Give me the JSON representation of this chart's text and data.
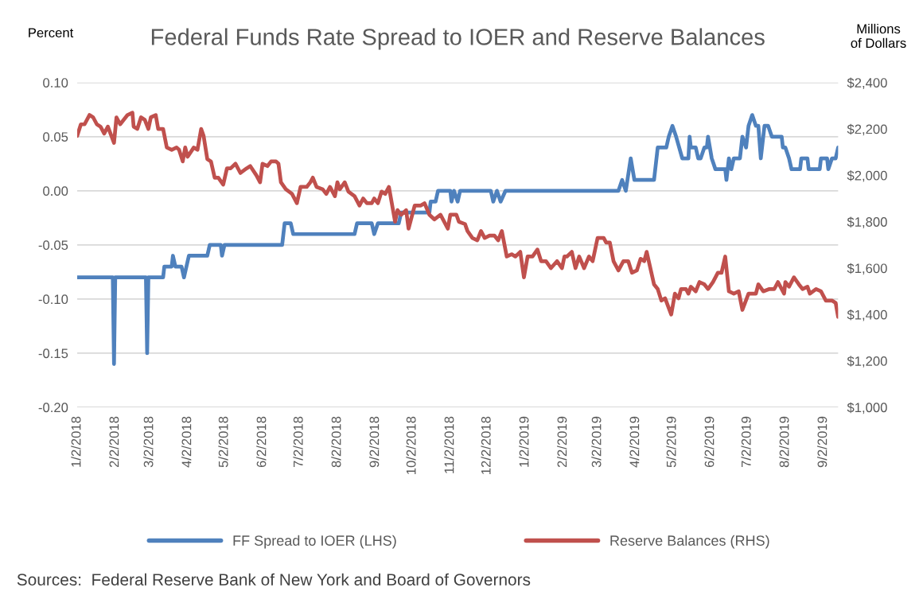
{
  "chart_data": {
    "type": "line",
    "title": "Federal Funds Rate Spread to IOER and Reserve Balances",
    "ylabel": "Percent",
    "y2label": "Millions\nof Dollars",
    "annotations": [
      "Sources:  Federal Reserve Bank of New York and Board of Governors"
    ],
    "xlim": [
      "2018-01-02",
      "2019-09-14"
    ],
    "xticks": [
      {
        "value": "2018-01-02",
        "label": "1/2/2018"
      },
      {
        "value": "2018-02-02",
        "label": "2/2/2018"
      },
      {
        "value": "2018-03-02",
        "label": "3/2/2018"
      },
      {
        "value": "2018-04-02",
        "label": "4/2/2018"
      },
      {
        "value": "2018-05-02",
        "label": "5/2/2018"
      },
      {
        "value": "2018-06-02",
        "label": "6/2/2018"
      },
      {
        "value": "2018-07-02",
        "label": "7/2/2018"
      },
      {
        "value": "2018-08-02",
        "label": "8/2/2018"
      },
      {
        "value": "2018-09-02",
        "label": "9/2/2018"
      },
      {
        "value": "2018-10-02",
        "label": "10/2/2018"
      },
      {
        "value": "2018-11-02",
        "label": "11/2/2018"
      },
      {
        "value": "2018-12-02",
        "label": "12/2/2018"
      },
      {
        "value": "2019-01-02",
        "label": "1/2/2019"
      },
      {
        "value": "2019-02-02",
        "label": "2/2/2019"
      },
      {
        "value": "2019-03-02",
        "label": "3/2/2019"
      },
      {
        "value": "2019-04-02",
        "label": "4/2/2019"
      },
      {
        "value": "2019-05-02",
        "label": "5/2/2019"
      },
      {
        "value": "2019-06-02",
        "label": "6/2/2019"
      },
      {
        "value": "2019-07-02",
        "label": "7/2/2019"
      },
      {
        "value": "2019-08-02",
        "label": "8/2/2019"
      },
      {
        "value": "2019-09-02",
        "label": "9/2/2019"
      }
    ],
    "ylim": [
      -0.2,
      0.1
    ],
    "yticks": [
      {
        "value": -0.2,
        "label": "-0.20"
      },
      {
        "value": -0.15,
        "label": "-0.15"
      },
      {
        "value": -0.1,
        "label": "-0.10"
      },
      {
        "value": -0.05,
        "label": "-0.05"
      },
      {
        "value": 0,
        "label": "0.00"
      },
      {
        "value": 0.05,
        "label": "0.05"
      },
      {
        "value": 0.1,
        "label": "0.10"
      }
    ],
    "y2lim": [
      1000,
      2400
    ],
    "y2ticks": [
      {
        "value": 1000,
        "label": "$1,000"
      },
      {
        "value": 1200,
        "label": "$1,200"
      },
      {
        "value": 1400,
        "label": "$1,400"
      },
      {
        "value": 1600,
        "label": "$1,600"
      },
      {
        "value": 1800,
        "label": "$1,800"
      },
      {
        "value": 2000,
        "label": "$2,000"
      },
      {
        "value": 2200,
        "label": "$2,200"
      },
      {
        "value": 2400,
        "label": "$2,400"
      }
    ],
    "grid": "y",
    "legend": "bottom",
    "series": [
      {
        "name": "FF Spread to IOER (LHS)",
        "color": "#4f81bd",
        "axis": "y",
        "x": [
          "2018-01-02",
          "2018-01-31",
          "2018-02-01",
          "2018-02-02",
          "2018-02-27",
          "2018-02-28",
          "2018-03-01",
          "2018-03-13",
          "2018-03-14",
          "2018-03-20",
          "2018-03-21",
          "2018-03-23",
          "2018-03-28",
          "2018-03-30",
          "2018-04-03",
          "2018-04-18",
          "2018-04-20",
          "2018-04-29",
          "2018-04-30",
          "2018-05-02",
          "2018-06-18",
          "2018-06-20",
          "2018-06-25",
          "2018-06-27",
          "2018-08-16",
          "2018-08-18",
          "2018-08-30",
          "2018-09-01",
          "2018-09-04",
          "2018-09-21",
          "2018-09-23",
          "2018-10-16",
          "2018-10-17",
          "2018-10-21",
          "2018-10-23",
          "2018-11-02",
          "2018-11-03",
          "2018-11-05",
          "2018-11-08",
          "2018-11-10",
          "2018-12-05",
          "2018-12-07",
          "2018-12-10",
          "2018-12-13",
          "2018-12-17",
          "2019-03-19",
          "2019-03-22",
          "2019-03-25",
          "2019-03-29",
          "2019-04-01",
          "2019-04-17",
          "2019-04-20",
          "2019-04-27",
          "2019-04-29",
          "2019-05-02",
          "2019-05-05",
          "2019-05-10",
          "2019-05-15",
          "2019-05-16",
          "2019-05-17",
          "2019-05-21",
          "2019-05-23",
          "2019-05-25",
          "2019-05-28",
          "2019-05-30",
          "2019-05-31",
          "2019-06-03",
          "2019-06-06",
          "2019-06-14",
          "2019-06-15",
          "2019-06-17",
          "2019-06-19",
          "2019-06-21",
          "2019-06-26",
          "2019-06-28",
          "2019-07-01",
          "2019-07-03",
          "2019-07-06",
          "2019-07-09",
          "2019-07-11",
          "2019-07-13",
          "2019-07-16",
          "2019-07-19",
          "2019-07-22",
          "2019-07-30",
          "2019-07-31",
          "2019-08-02",
          "2019-08-05",
          "2019-08-07",
          "2019-08-14",
          "2019-08-15",
          "2019-08-20",
          "2019-08-21",
          "2019-08-30",
          "2019-08-31",
          "2019-09-05",
          "2019-09-06",
          "2019-09-09",
          "2019-09-12",
          "2019-09-14"
        ],
        "values": [
          -0.08,
          -0.08,
          -0.16,
          -0.08,
          -0.08,
          -0.15,
          -0.08,
          -0.08,
          -0.07,
          -0.07,
          -0.06,
          -0.07,
          -0.07,
          -0.08,
          -0.06,
          -0.06,
          -0.05,
          -0.05,
          -0.06,
          -0.05,
          -0.05,
          -0.03,
          -0.03,
          -0.04,
          -0.04,
          -0.03,
          -0.03,
          -0.04,
          -0.03,
          -0.03,
          -0.02,
          -0.02,
          -0.01,
          -0.01,
          0,
          0,
          -0.01,
          0,
          -0.01,
          0,
          0,
          -0.01,
          0,
          -0.01,
          0,
          0,
          0.01,
          0,
          0.03,
          0.01,
          0.01,
          0.04,
          0.04,
          0.05,
          0.06,
          0.05,
          0.03,
          0.03,
          0.05,
          0.04,
          0.04,
          0.03,
          0.03,
          0.04,
          0.04,
          0.05,
          0.03,
          0.02,
          0.02,
          0.01,
          0.03,
          0.02,
          0.03,
          0.03,
          0.05,
          0.04,
          0.06,
          0.07,
          0.06,
          0.06,
          0.03,
          0.06,
          0.06,
          0.05,
          0.05,
          0.04,
          0.04,
          0.03,
          0.02,
          0.02,
          0.03,
          0.03,
          0.02,
          0.02,
          0.03,
          0.03,
          0.02,
          0.03,
          0.03,
          0.04
        ]
      },
      {
        "name": "Reserve Balances (RHS)",
        "color": "#c0504d",
        "axis": "y2",
        "x": [
          "2018-01-02",
          "2018-01-05",
          "2018-01-08",
          "2018-01-12",
          "2018-01-15",
          "2018-01-18",
          "2018-01-21",
          "2018-01-24",
          "2018-01-27",
          "2018-02-01",
          "2018-02-03",
          "2018-02-06",
          "2018-02-12",
          "2018-02-16",
          "2018-02-17",
          "2018-02-20",
          "2018-02-23",
          "2018-02-26",
          "2018-03-01",
          "2018-03-03",
          "2018-03-07",
          "2018-03-09",
          "2018-03-13",
          "2018-03-16",
          "2018-03-20",
          "2018-03-24",
          "2018-03-26",
          "2018-03-29",
          "2018-03-31",
          "2018-04-02",
          "2018-04-07",
          "2018-04-10",
          "2018-04-13",
          "2018-04-15",
          "2018-04-18",
          "2018-04-21",
          "2018-04-24",
          "2018-04-27",
          "2018-05-01",
          "2018-05-04",
          "2018-05-07",
          "2018-05-11",
          "2018-05-15",
          "2018-05-20",
          "2018-05-23",
          "2018-05-28",
          "2018-05-31",
          "2018-06-02",
          "2018-06-06",
          "2018-06-09",
          "2018-06-13",
          "2018-06-15",
          "2018-06-17",
          "2018-06-21",
          "2018-06-26",
          "2018-06-30",
          "2018-07-03",
          "2018-07-08",
          "2018-07-11",
          "2018-07-13",
          "2018-07-16",
          "2018-07-21",
          "2018-07-24",
          "2018-07-27",
          "2018-07-31",
          "2018-08-02",
          "2018-08-04",
          "2018-08-08",
          "2018-08-11",
          "2018-08-16",
          "2018-08-20",
          "2018-08-23",
          "2018-08-26",
          "2018-08-30",
          "2018-09-01",
          "2018-09-04",
          "2018-09-07",
          "2018-09-10",
          "2018-09-13",
          "2018-09-18",
          "2018-09-20",
          "2018-09-23",
          "2018-09-27",
          "2018-09-29",
          "2018-10-04",
          "2018-10-09",
          "2018-10-12",
          "2018-10-16",
          "2018-10-20",
          "2018-10-25",
          "2018-10-28",
          "2018-10-31",
          "2018-11-02",
          "2018-11-07",
          "2018-11-09",
          "2018-11-14",
          "2018-11-16",
          "2018-11-20",
          "2018-11-24",
          "2018-11-27",
          "2018-11-30",
          "2018-12-04",
          "2018-12-08",
          "2018-12-11",
          "2018-12-14",
          "2018-12-18",
          "2018-12-22",
          "2018-12-25",
          "2018-12-29",
          "2019-01-01",
          "2019-01-04",
          "2019-01-08",
          "2019-01-12",
          "2019-01-15",
          "2019-01-19",
          "2019-01-23",
          "2019-01-28",
          "2019-02-01",
          "2019-02-03",
          "2019-02-05",
          "2019-02-09",
          "2019-02-12",
          "2019-02-15",
          "2019-02-19",
          "2019-02-23",
          "2019-02-26",
          "2019-02-28",
          "2019-03-02",
          "2019-03-07",
          "2019-03-09",
          "2019-03-12",
          "2019-03-15",
          "2019-03-19",
          "2019-03-23",
          "2019-03-27",
          "2019-03-30",
          "2019-04-03",
          "2019-04-06",
          "2019-04-09",
          "2019-04-11",
          "2019-04-17",
          "2019-04-20",
          "2019-04-23",
          "2019-04-26",
          "2019-05-01",
          "2019-05-04",
          "2019-05-07",
          "2019-05-09",
          "2019-05-13",
          "2019-05-15",
          "2019-05-17",
          "2019-05-21",
          "2019-05-24",
          "2019-05-28",
          "2019-05-31",
          "2019-06-04",
          "2019-06-08",
          "2019-06-11",
          "2019-06-14",
          "2019-06-17",
          "2019-06-21",
          "2019-06-25",
          "2019-06-28",
          "2019-07-03",
          "2019-07-09",
          "2019-07-11",
          "2019-07-15",
          "2019-07-20",
          "2019-07-24",
          "2019-07-27",
          "2019-08-01",
          "2019-08-02",
          "2019-08-05",
          "2019-08-09",
          "2019-08-13",
          "2019-08-16",
          "2019-08-20",
          "2019-08-22",
          "2019-08-27",
          "2019-08-31",
          "2019-09-04",
          "2019-09-09",
          "2019-09-12",
          "2019-09-14"
        ],
        "values": [
          2170,
          2220,
          2220,
          2260,
          2250,
          2220,
          2210,
          2180,
          2210,
          2140,
          2250,
          2220,
          2260,
          2270,
          2210,
          2200,
          2250,
          2240,
          2200,
          2250,
          2260,
          2200,
          2200,
          2120,
          2110,
          2120,
          2110,
          2060,
          2120,
          2080,
          2120,
          2110,
          2200,
          2170,
          2070,
          2060,
          1990,
          1990,
          1960,
          2030,
          2030,
          2050,
          2010,
          2030,
          2040,
          2000,
          1970,
          2050,
          2040,
          2060,
          2060,
          2050,
          1970,
          1940,
          1920,
          1880,
          1950,
          1950,
          1970,
          1990,
          1950,
          1940,
          1920,
          1950,
          1910,
          1970,
          1940,
          1970,
          1930,
          1910,
          1870,
          1900,
          1880,
          1880,
          1900,
          1880,
          1930,
          1920,
          1950,
          1800,
          1850,
          1830,
          1850,
          1770,
          1870,
          1870,
          1880,
          1830,
          1810,
          1830,
          1800,
          1770,
          1830,
          1830,
          1800,
          1790,
          1760,
          1730,
          1720,
          1760,
          1730,
          1740,
          1740,
          1720,
          1760,
          1650,
          1660,
          1650,
          1670,
          1560,
          1650,
          1650,
          1680,
          1630,
          1630,
          1600,
          1630,
          1600,
          1650,
          1650,
          1670,
          1600,
          1650,
          1600,
          1650,
          1630,
          1680,
          1730,
          1730,
          1710,
          1710,
          1630,
          1590,
          1630,
          1630,
          1580,
          1590,
          1640,
          1630,
          1670,
          1530,
          1510,
          1460,
          1470,
          1400,
          1490,
          1470,
          1510,
          1510,
          1490,
          1520,
          1500,
          1540,
          1530,
          1510,
          1540,
          1580,
          1580,
          1650,
          1500,
          1490,
          1500,
          1420,
          1490,
          1490,
          1530,
          1500,
          1510,
          1510,
          1540,
          1490,
          1540,
          1520,
          1560,
          1530,
          1510,
          1520,
          1490,
          1510,
          1500,
          1460,
          1460,
          1450,
          1390
        ]
      }
    ]
  }
}
